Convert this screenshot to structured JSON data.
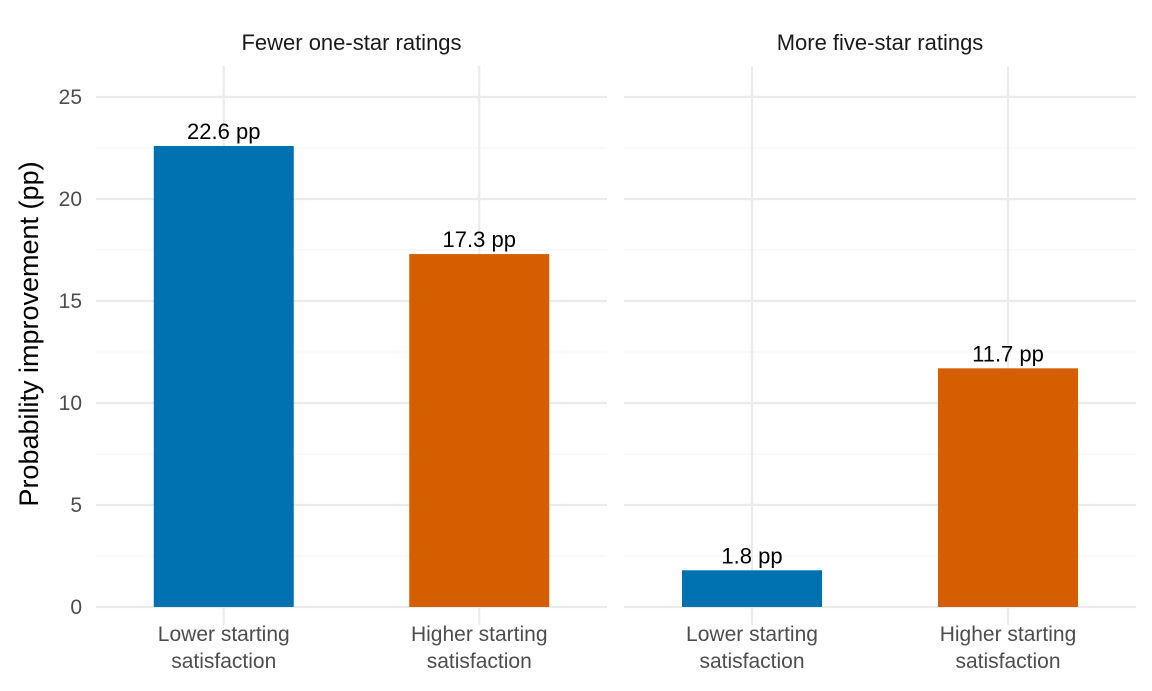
{
  "chart_data": {
    "type": "bar",
    "ylabel": "Probability improvement (pp)",
    "xlabel": "",
    "ylim": [
      0,
      26
    ],
    "yticks": [
      "0",
      "5",
      "10",
      "15",
      "20",
      "25"
    ],
    "ytick_values": [
      0,
      5,
      10,
      15,
      20,
      25
    ],
    "grid": true,
    "legend": "none",
    "categories": [
      [
        "Lower starting",
        "satisfaction"
      ],
      [
        "Higher starting",
        "satisfaction"
      ]
    ],
    "colors": [
      "#0072b2",
      "#d55e00"
    ],
    "panels": [
      {
        "title": "Fewer one-star ratings",
        "values": [
          22.6,
          17.3
        ],
        "labels": [
          "22.6 pp",
          "17.3 pp"
        ]
      },
      {
        "title": "More five-star ratings",
        "values": [
          1.8,
          11.7
        ],
        "labels": [
          "1.8 pp",
          "11.7 pp"
        ]
      }
    ]
  }
}
